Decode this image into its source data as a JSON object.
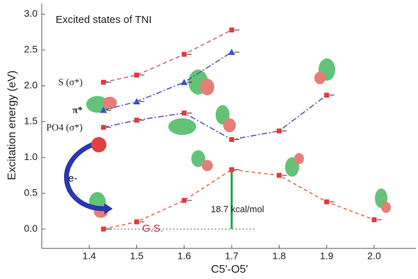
{
  "chart_data": {
    "type": "line",
    "title": "Excited states of TNI",
    "x_label": "C5'-O5'",
    "y_label": "Excitation energy (eV)",
    "x": [
      1.43,
      1.5,
      1.6,
      1.7,
      1.8,
      1.9,
      2.0
    ],
    "series": [
      {
        "name": "S (σ*)",
        "color": "#d0609c",
        "marker": "square",
        "marker_color": "#e03a3a",
        "dash": "6 4",
        "values": [
          2.05,
          2.15,
          2.44,
          2.78,
          null,
          null,
          null
        ]
      },
      {
        "name": "π*",
        "color": "#4a5fc0",
        "marker": "triangle",
        "marker_color": "#3a55c8",
        "dash": "8 3 2 3",
        "values": [
          1.66,
          1.78,
          2.05,
          2.47,
          null,
          null,
          null
        ]
      },
      {
        "name": "PO4 (σ*)",
        "color": "#5a5aa8",
        "marker": "square",
        "marker_color": "#e03a3a",
        "dash": "8 3 2 3",
        "values": [
          1.42,
          1.52,
          1.62,
          1.25,
          1.37,
          1.87,
          null
        ]
      },
      {
        "name": "G.S.",
        "color": "#e07040",
        "marker": "square",
        "marker_color": "#e03a3a",
        "dash": "5 4",
        "values": [
          0.0,
          0.1,
          0.4,
          0.83,
          0.75,
          0.38,
          0.13
        ]
      }
    ],
    "annotations": [
      "18.7 kcal/mol",
      "e-"
    ],
    "xlim": [
      1.3,
      2.088
    ],
    "ylim": [
      -0.27,
      3.15
    ],
    "xticks": [
      1.4,
      1.5,
      1.6,
      1.7,
      1.8,
      1.9,
      {
        "value": 2,
        "label": "2.0"
      }
    ],
    "yticks": [
      {
        "value": 0,
        "label": "0.0"
      },
      {
        "value": 0.5,
        "label": "0.5"
      },
      {
        "value": 1,
        "label": "1.0"
      },
      {
        "value": 1.5,
        "label": "1.5"
      },
      {
        "value": 2,
        "label": "2.0"
      },
      {
        "value": 2.5,
        "label": "2.5"
      },
      {
        "value": 3,
        "label": "3.0"
      }
    ]
  }
}
